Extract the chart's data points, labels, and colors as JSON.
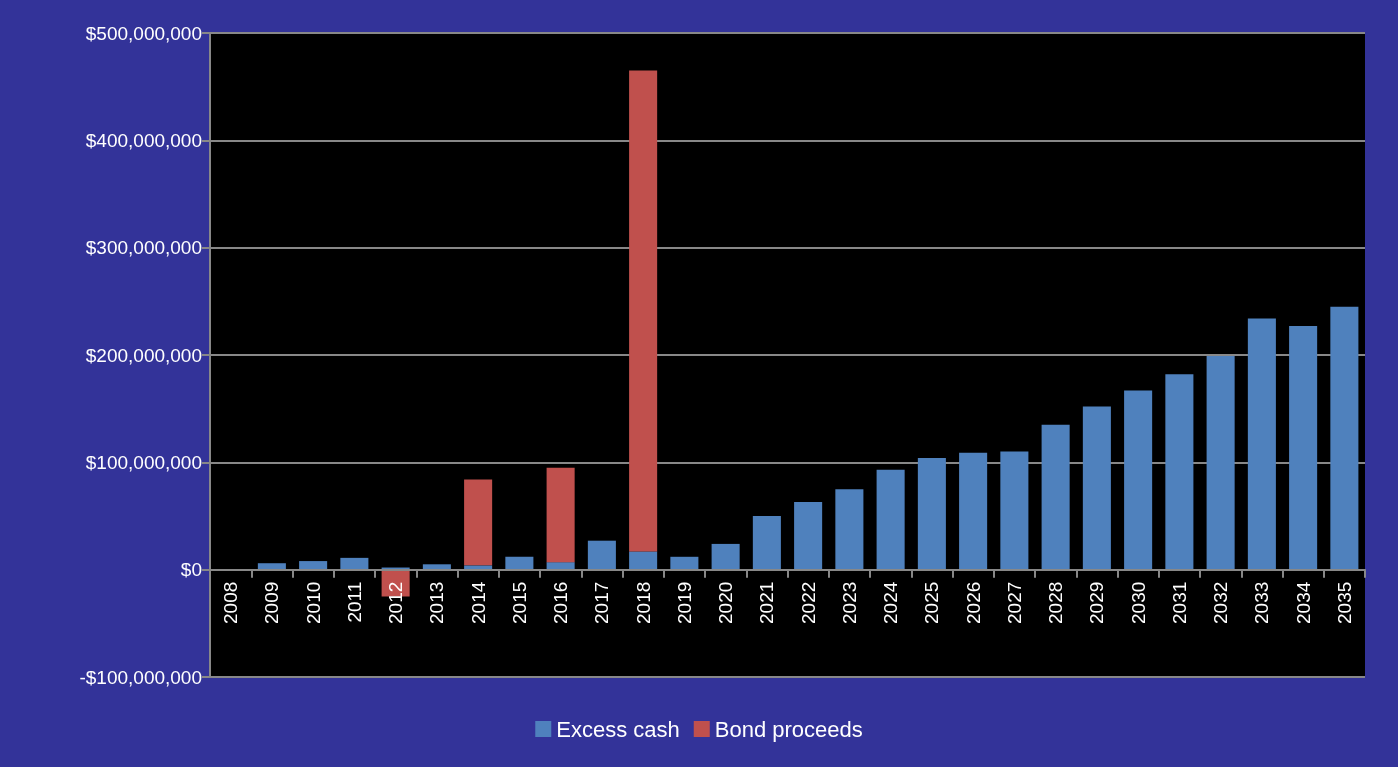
{
  "chart_data": {
    "type": "bar",
    "stacked": true,
    "categories": [
      "2008",
      "2009",
      "2010",
      "2011",
      "2012",
      "2013",
      "2014",
      "2015",
      "2016",
      "2017",
      "2018",
      "2019",
      "2020",
      "2021",
      "2022",
      "2023",
      "2024",
      "2025",
      "2026",
      "2027",
      "2028",
      "2029",
      "2030",
      "2031",
      "2032",
      "2033",
      "2034",
      "2035"
    ],
    "series": [
      {
        "name": "Excess cash",
        "color": "#4f81bd",
        "values": [
          0,
          6000000,
          8000000,
          11000000,
          2000000,
          5000000,
          4000000,
          12000000,
          7000000,
          27000000,
          17000000,
          12000000,
          24000000,
          50000000,
          63000000,
          75000000,
          93000000,
          104000000,
          109000000,
          110000000,
          135000000,
          152000000,
          167000000,
          182000000,
          199000000,
          234000000,
          227000000,
          245000000
        ]
      },
      {
        "name": "Bond proceeds",
        "color": "#c0504d",
        "values": [
          null,
          null,
          null,
          null,
          -25000000,
          null,
          80000000,
          null,
          88000000,
          null,
          448000000,
          null,
          null,
          null,
          null,
          null,
          null,
          null,
          null,
          null,
          null,
          null,
          null,
          null,
          null,
          null,
          null,
          null
        ]
      }
    ],
    "ylim": [
      -100000000,
      500000000
    ],
    "yticks": [
      {
        "value": -100000000,
        "label": "-$100,000,000"
      },
      {
        "value": 0,
        "label": "$0"
      },
      {
        "value": 100000000,
        "label": "$100,000,000"
      },
      {
        "value": 200000000,
        "label": "$200,000,000"
      },
      {
        "value": 300000000,
        "label": "$300,000,000"
      },
      {
        "value": 400000000,
        "label": "$400,000,000"
      },
      {
        "value": 500000000,
        "label": "$500,000,000"
      }
    ],
    "grid": "y",
    "legend": "bottom"
  }
}
